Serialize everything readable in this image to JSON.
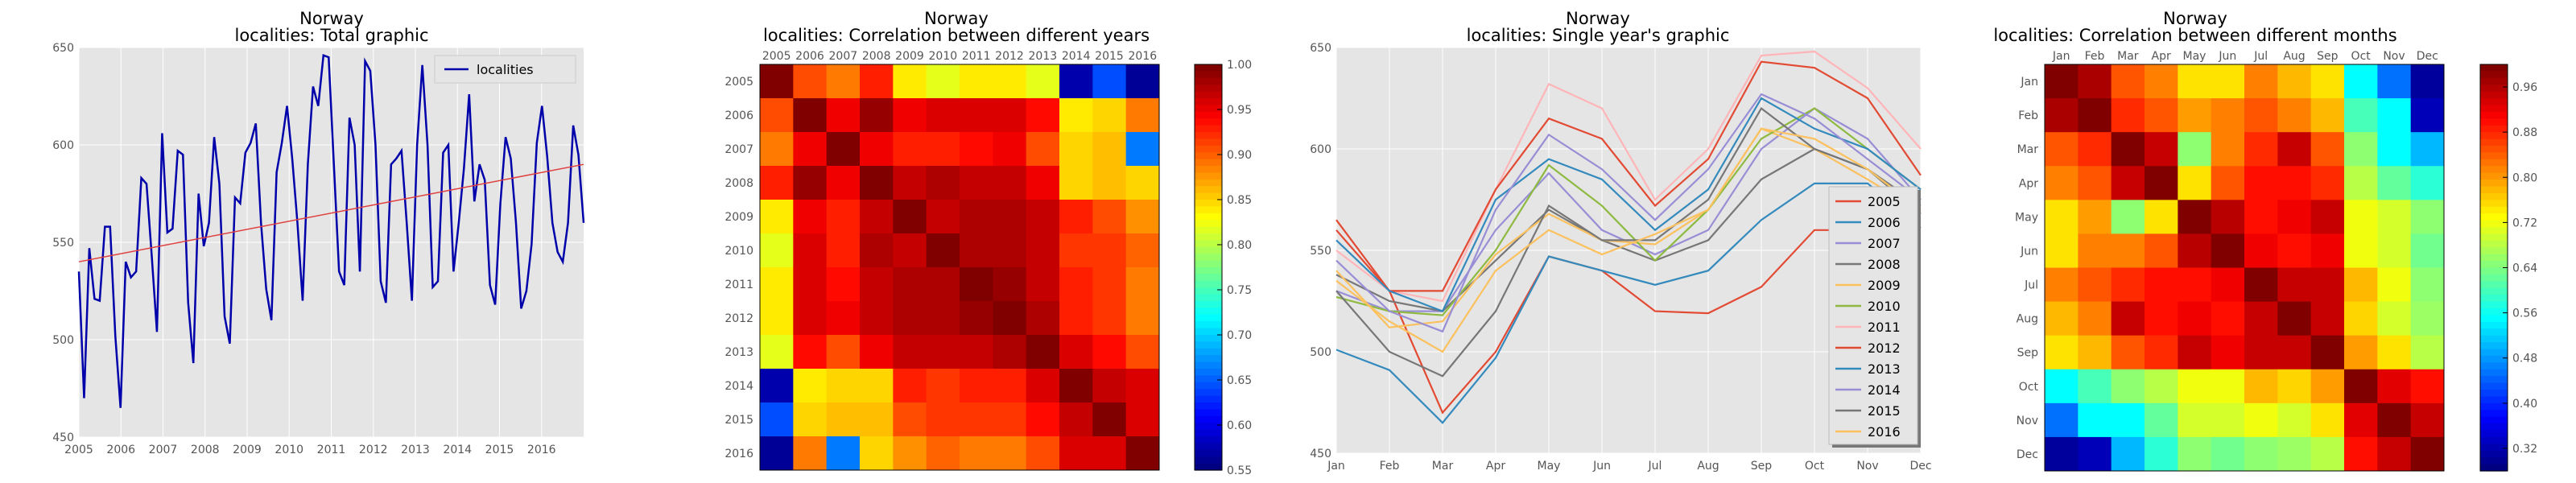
{
  "chart_data": [
    {
      "type": "line",
      "title": "Norway",
      "subtitle": "localities: Total graphic",
      "x_ticks": [
        "2005",
        "2006",
        "2007",
        "2008",
        "2009",
        "2010",
        "2011",
        "2012",
        "2013",
        "2014",
        "2015",
        "2016"
      ],
      "y_ticks": [
        "450",
        "500",
        "550",
        "600",
        "650"
      ],
      "ylim": [
        450,
        650
      ],
      "xlim": [
        2005,
        2017
      ],
      "legend": "top-right",
      "grid": true,
      "series": [
        {
          "name": "localities",
          "color": "#0000aa",
          "values": [
            535,
            470,
            547,
            521,
            520,
            558,
            558,
            502,
            465,
            540,
            532,
            535,
            583,
            580,
            543,
            504,
            606,
            555,
            557,
            597,
            595,
            519,
            488,
            575,
            548,
            560,
            604,
            580,
            512,
            498,
            573,
            570,
            596,
            601,
            611,
            560,
            526,
            510,
            586,
            601,
            620,
            593,
            560,
            520,
            590,
            630,
            620,
            646,
            645,
            590,
            535,
            528,
            614,
            600,
            535,
            643,
            638,
            600,
            530,
            519,
            590,
            593,
            597,
            560,
            520,
            600,
            641,
            600,
            527,
            530,
            596,
            600,
            535,
            560,
            588,
            626,
            571,
            590,
            582,
            528,
            518,
            570,
            604,
            593,
            560,
            516,
            525,
            549,
            601,
            620,
            594,
            560,
            545,
            540,
            560,
            610,
            595,
            560
          ]
        },
        {
          "name": "",
          "color": "#e04040",
          "values": [
            540,
            590
          ]
        }
      ]
    },
    {
      "type": "heatmap",
      "title": "Norway",
      "subtitle": "localities: Correlation between different years",
      "labels": [
        "2005",
        "2006",
        "2007",
        "2008",
        "2009",
        "2010",
        "2011",
        "2012",
        "2013",
        "2014",
        "2015",
        "2016"
      ],
      "colorbar_ticks": [
        "0.55",
        "0.60",
        "0.65",
        "0.70",
        "0.75",
        "0.80",
        "0.85",
        "0.90",
        "0.95",
        "1.00"
      ],
      "vmin": 0.55,
      "vmax": 1.0,
      "matrix": [
        [
          1.0,
          0.91,
          0.89,
          0.93,
          0.84,
          0.82,
          0.84,
          0.84,
          0.82,
          0.57,
          0.64,
          0.56
        ],
        [
          0.91,
          1.0,
          0.95,
          0.99,
          0.95,
          0.96,
          0.96,
          0.96,
          0.94,
          0.84,
          0.85,
          0.89
        ],
        [
          0.89,
          0.95,
          1.0,
          0.95,
          0.93,
          0.93,
          0.94,
          0.95,
          0.91,
          0.85,
          0.86,
          0.66
        ],
        [
          0.93,
          0.99,
          0.95,
          1.0,
          0.97,
          0.98,
          0.97,
          0.97,
          0.95,
          0.85,
          0.86,
          0.85
        ],
        [
          0.84,
          0.95,
          0.93,
          0.97,
          1.0,
          0.97,
          0.98,
          0.98,
          0.97,
          0.93,
          0.91,
          0.88
        ],
        [
          0.82,
          0.96,
          0.93,
          0.98,
          0.97,
          1.0,
          0.98,
          0.98,
          0.97,
          0.92,
          0.92,
          0.9
        ],
        [
          0.84,
          0.96,
          0.94,
          0.97,
          0.98,
          0.98,
          1.0,
          0.99,
          0.97,
          0.93,
          0.92,
          0.89
        ],
        [
          0.84,
          0.96,
          0.95,
          0.97,
          0.98,
          0.98,
          0.99,
          1.0,
          0.98,
          0.93,
          0.92,
          0.89
        ],
        [
          0.82,
          0.94,
          0.91,
          0.95,
          0.97,
          0.97,
          0.97,
          0.98,
          1.0,
          0.96,
          0.94,
          0.91
        ],
        [
          0.57,
          0.84,
          0.85,
          0.85,
          0.93,
          0.92,
          0.93,
          0.93,
          0.96,
          1.0,
          0.97,
          0.96
        ],
        [
          0.64,
          0.85,
          0.86,
          0.86,
          0.91,
          0.92,
          0.92,
          0.92,
          0.94,
          0.97,
          1.0,
          0.96
        ],
        [
          0.56,
          0.89,
          0.66,
          0.85,
          0.88,
          0.9,
          0.89,
          0.89,
          0.91,
          0.96,
          0.96,
          1.0
        ]
      ]
    },
    {
      "type": "line",
      "title": "Norway",
      "subtitle": "localities: Single year's graphic",
      "categories": [
        "Jan",
        "Feb",
        "Mar",
        "Apr",
        "May",
        "Jun",
        "Jul",
        "Aug",
        "Sep",
        "Oct",
        "Nov",
        "Dec"
      ],
      "y_ticks": [
        "450",
        "500",
        "550",
        "600",
        "650"
      ],
      "ylim": [
        450,
        650
      ],
      "legend": "right",
      "grid": true,
      "series": [
        {
          "name": "2005",
          "color": "#e24a33",
          "values": [
            565,
            530,
            470,
            500,
            547,
            540,
            520,
            519,
            532,
            560,
            560,
            560
          ]
        },
        {
          "name": "2006",
          "color": "#348abd",
          "values": [
            501,
            491,
            465,
            497,
            547,
            540,
            533,
            540,
            565,
            583,
            583,
            561
          ]
        },
        {
          "name": "2007",
          "color": "#988ed5",
          "values": [
            530,
            520,
            520,
            560,
            588,
            560,
            548,
            560,
            600,
            620,
            605,
            575
          ]
        },
        {
          "name": "2008",
          "color": "#777777",
          "values": [
            538,
            525,
            520,
            545,
            570,
            555,
            545,
            555,
            585,
            600,
            590,
            572
          ]
        },
        {
          "name": "2009",
          "color": "#fbc15e",
          "values": [
            540,
            512,
            515,
            548,
            568,
            555,
            553,
            570,
            610,
            600,
            585,
            569
          ]
        },
        {
          "name": "2010",
          "color": "#8eba42",
          "values": [
            527,
            520,
            518,
            550,
            592,
            572,
            545,
            570,
            605,
            620,
            600,
            580
          ]
        },
        {
          "name": "2011",
          "color": "#ffb5b8",
          "values": [
            550,
            530,
            525,
            580,
            632,
            620,
            575,
            600,
            646,
            648,
            630,
            600
          ]
        },
        {
          "name": "2012",
          "color": "#e24a33",
          "values": [
            560,
            530,
            530,
            580,
            615,
            605,
            572,
            595,
            643,
            640,
            625,
            587
          ]
        },
        {
          "name": "2013",
          "color": "#348abd",
          "values": [
            555,
            530,
            520,
            575,
            595,
            585,
            560,
            580,
            625,
            610,
            600,
            580
          ]
        },
        {
          "name": "2014",
          "color": "#988ed5",
          "values": [
            545,
            520,
            510,
            570,
            607,
            590,
            565,
            590,
            627,
            615,
            595,
            575
          ]
        },
        {
          "name": "2015",
          "color": "#777777",
          "values": [
            530,
            500,
            488,
            520,
            572,
            555,
            555,
            575,
            620,
            600,
            590,
            568
          ]
        },
        {
          "name": "2016",
          "color": "#fbc15e",
          "values": [
            535,
            515,
            500,
            540,
            560,
            548,
            558,
            570,
            610,
            605,
            590,
            570
          ]
        }
      ]
    },
    {
      "type": "heatmap",
      "title": "Norway",
      "subtitle": "localities: Correlation between different months",
      "labels": [
        "Jan",
        "Feb",
        "Mar",
        "Apr",
        "May",
        "Jun",
        "Jul",
        "Aug",
        "Sep",
        "Oct",
        "Nov",
        "Dec"
      ],
      "colorbar_ticks": [
        "0.32",
        "0.40",
        "0.48",
        "0.56",
        "0.64",
        "0.72",
        "0.80",
        "0.88",
        "0.96"
      ],
      "vmin": 0.28,
      "vmax": 1.0,
      "matrix": [
        [
          1.0,
          0.97,
          0.85,
          0.82,
          0.75,
          0.75,
          0.82,
          0.78,
          0.75,
          0.55,
          0.45,
          0.3
        ],
        [
          0.97,
          1.0,
          0.88,
          0.85,
          0.8,
          0.82,
          0.85,
          0.82,
          0.78,
          0.6,
          0.55,
          0.32
        ],
        [
          0.85,
          0.88,
          1.0,
          0.95,
          0.65,
          0.82,
          0.88,
          0.95,
          0.85,
          0.65,
          0.55,
          0.5
        ],
        [
          0.82,
          0.85,
          0.95,
          1.0,
          0.75,
          0.85,
          0.9,
          0.9,
          0.88,
          0.68,
          0.62,
          0.58
        ],
        [
          0.75,
          0.8,
          0.65,
          0.75,
          1.0,
          0.96,
          0.9,
          0.92,
          0.95,
          0.72,
          0.7,
          0.65
        ],
        [
          0.75,
          0.82,
          0.82,
          0.85,
          0.96,
          1.0,
          0.92,
          0.9,
          0.92,
          0.72,
          0.7,
          0.63
        ],
        [
          0.82,
          0.85,
          0.88,
          0.9,
          0.9,
          0.92,
          1.0,
          0.95,
          0.95,
          0.78,
          0.72,
          0.65
        ],
        [
          0.78,
          0.82,
          0.95,
          0.9,
          0.92,
          0.9,
          0.95,
          1.0,
          0.95,
          0.76,
          0.7,
          0.66
        ],
        [
          0.75,
          0.78,
          0.85,
          0.88,
          0.95,
          0.92,
          0.95,
          0.95,
          1.0,
          0.8,
          0.75,
          0.68
        ],
        [
          0.55,
          0.6,
          0.65,
          0.68,
          0.72,
          0.72,
          0.78,
          0.76,
          0.8,
          1.0,
          0.93,
          0.9
        ],
        [
          0.45,
          0.55,
          0.55,
          0.62,
          0.7,
          0.7,
          0.72,
          0.7,
          0.75,
          0.93,
          1.0,
          0.95
        ],
        [
          0.3,
          0.32,
          0.5,
          0.58,
          0.65,
          0.63,
          0.65,
          0.66,
          0.68,
          0.9,
          0.95,
          1.0
        ]
      ]
    }
  ]
}
